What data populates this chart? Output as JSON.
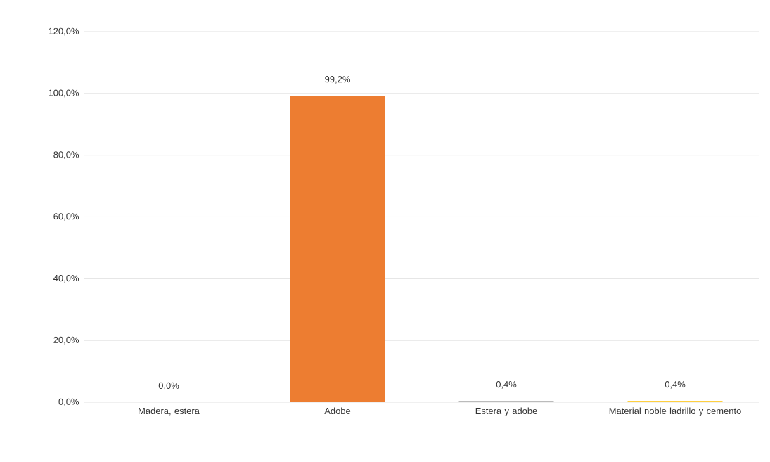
{
  "chart_data": {
    "type": "bar",
    "categories": [
      "Madera, estera",
      "Adobe",
      "Estera y adobe",
      "Material noble ladrillo y cemento"
    ],
    "values": [
      0.0,
      99.2,
      0.4,
      0.4
    ],
    "colors": [
      "#4472c4",
      "#ed7d31",
      "#a5a5a5",
      "#ffc000"
    ],
    "value_labels": [
      "0,0%",
      "99,2%",
      "0,4%",
      "0,4%"
    ],
    "ylim": [
      0,
      120
    ],
    "yticks": [
      {
        "value": 0,
        "label": "0,0%"
      },
      {
        "value": 20,
        "label": "20,0%"
      },
      {
        "value": 40,
        "label": "40,0%"
      },
      {
        "value": 60,
        "label": "60,0%"
      },
      {
        "value": 80,
        "label": "80,0%"
      },
      {
        "value": 100,
        "label": "100,0%"
      },
      {
        "value": 120,
        "label": "120,0%"
      }
    ],
    "grid": "y"
  }
}
